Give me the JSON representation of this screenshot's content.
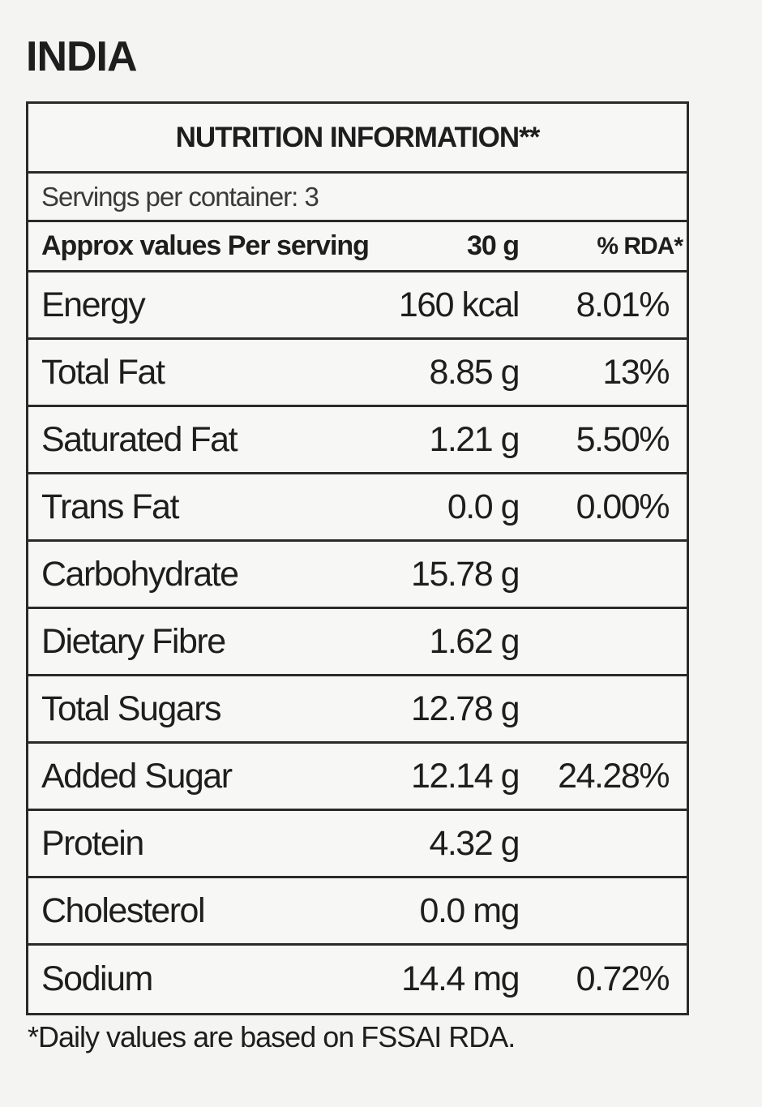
{
  "country": "INDIA",
  "panel": {
    "title": "NUTRITION INFORMATION**",
    "servings": "Servings per container: 3",
    "column_header": {
      "label": "Approx values Per serving",
      "amount": "30 g",
      "rda": "% RDA*"
    },
    "rows": [
      {
        "name": "Energy",
        "amount": "160 kcal",
        "rda": "8.01%"
      },
      {
        "name": "Total Fat",
        "amount": "8.85 g",
        "rda": "13%"
      },
      {
        "name": "Saturated Fat",
        "amount": "1.21 g",
        "rda": "5.50%"
      },
      {
        "name": "Trans Fat",
        "amount": "0.0 g",
        "rda": "0.00%"
      },
      {
        "name": "Carbohydrate",
        "amount": "15.78 g",
        "rda": ""
      },
      {
        "name": "Dietary Fibre",
        "amount": "1.62 g",
        "rda": ""
      },
      {
        "name": "Total Sugars",
        "amount": "12.78 g",
        "rda": ""
      },
      {
        "name": "Added Sugar",
        "amount": "12.14 g",
        "rda": "24.28%"
      },
      {
        "name": "Protein",
        "amount": "4.32 g",
        "rda": ""
      },
      {
        "name": "Cholesterol",
        "amount": "0.0 mg",
        "rda": ""
      },
      {
        "name": "Sodium",
        "amount": "14.4 mg",
        "rda": "0.72%"
      }
    ]
  },
  "footnote": "*Daily values are based on FSSAI RDA."
}
